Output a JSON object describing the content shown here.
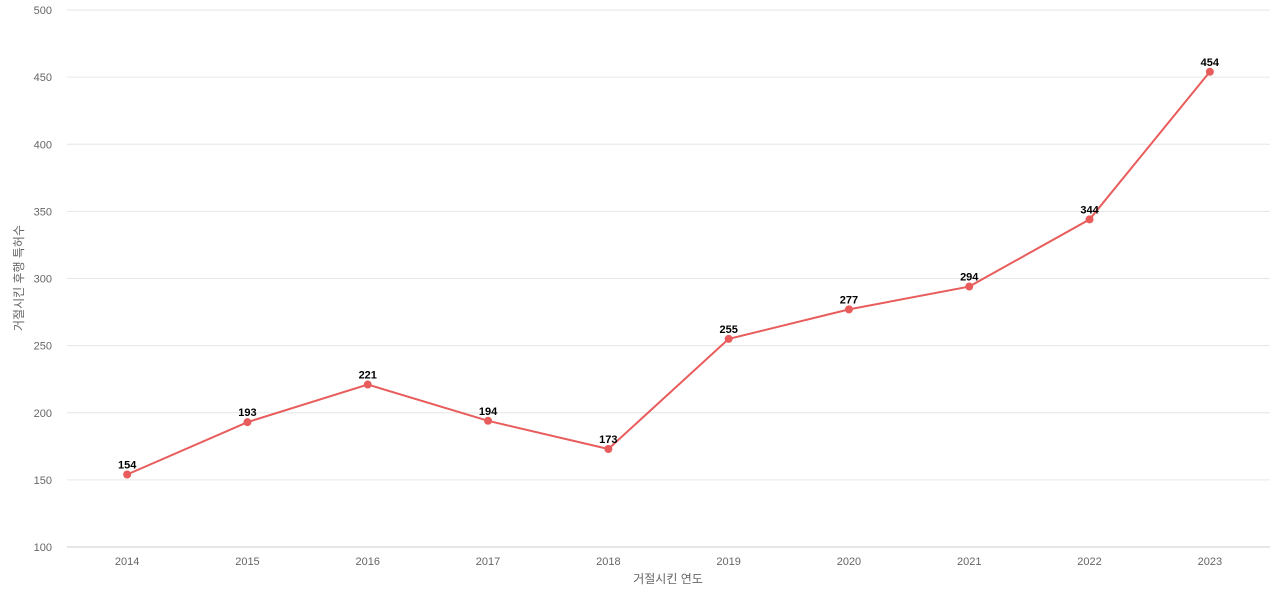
{
  "chart_data": {
    "type": "line",
    "categories": [
      "2014",
      "2015",
      "2016",
      "2017",
      "2018",
      "2019",
      "2020",
      "2021",
      "2022",
      "2023"
    ],
    "series": [
      {
        "values": [
          154,
          193,
          221,
          194,
          173,
          255,
          277,
          294,
          344,
          454
        ],
        "color": "#e85c5c"
      }
    ],
    "title": "",
    "xlabel": "거절시킨 연도",
    "ylabel": "거절시킨 후행 특허수",
    "ylim": [
      100,
      500
    ],
    "yticks": [
      100,
      150,
      200,
      250,
      300,
      350,
      400,
      450,
      500
    ],
    "grid": true,
    "legend": "none",
    "data_labels": true
  }
}
